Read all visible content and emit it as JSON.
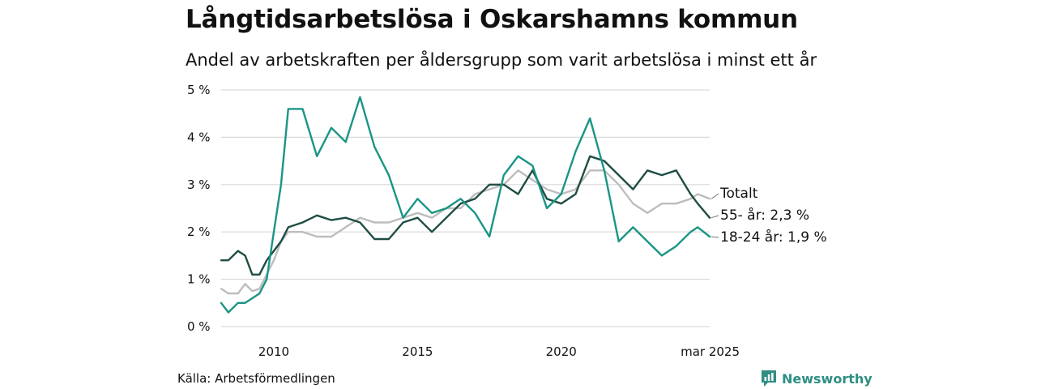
{
  "header": {
    "title": "Långtidsarbetslösa i Oskarshamns kommun",
    "subtitle": "Andel av arbetskraften per åldersgrupp som varit arbetslösa i minst ett år"
  },
  "footer": {
    "source": "Källa: Arbetsförmedlingen",
    "brand": "Newsworthy"
  },
  "colors": {
    "totalt": "#bdbdbd",
    "age55": "#1f4d45",
    "age18_24": "#1a9585",
    "grid": "#d9d9d9",
    "brand": "#2f8f83"
  },
  "chart_data": {
    "type": "line",
    "title": "Långtidsarbetslösa i Oskarshamns kommun",
    "subtitle": "Andel av arbetskraften per åldersgrupp som varit arbetslösa i minst ett år",
    "xlabel": "",
    "ylabel": "",
    "ylim": [
      0,
      5
    ],
    "xlim": [
      "2008-03",
      "2025-03"
    ],
    "grid": "horizontal",
    "y_ticks": [
      "0 %",
      "1 %",
      "2 %",
      "3 %",
      "4 %",
      "5 %"
    ],
    "x_ticks": [
      {
        "date": "2010-01",
        "label": "2010"
      },
      {
        "date": "2015-01",
        "label": "2015"
      },
      {
        "date": "2020-01",
        "label": "2020"
      },
      {
        "date": "2025-03",
        "label": "mar 2025"
      }
    ],
    "series": [
      {
        "name": "Totalt",
        "label": "Totalt",
        "color": "#bdbdbd",
        "points": [
          [
            "2008-03",
            0.8
          ],
          [
            "2008-06",
            0.7
          ],
          [
            "2008-10",
            0.7
          ],
          [
            "2009-01",
            0.9
          ],
          [
            "2009-04",
            0.75
          ],
          [
            "2009-07",
            0.8
          ],
          [
            "2009-10",
            1.1
          ],
          [
            "2010-01",
            1.4
          ],
          [
            "2010-04",
            1.8
          ],
          [
            "2010-07",
            2.0
          ],
          [
            "2011-01",
            2.0
          ],
          [
            "2011-07",
            1.9
          ],
          [
            "2012-01",
            1.9
          ],
          [
            "2012-07",
            2.1
          ],
          [
            "2013-01",
            2.3
          ],
          [
            "2013-07",
            2.2
          ],
          [
            "2014-01",
            2.2
          ],
          [
            "2014-07",
            2.3
          ],
          [
            "2015-01",
            2.4
          ],
          [
            "2015-07",
            2.3
          ],
          [
            "2016-01",
            2.5
          ],
          [
            "2016-07",
            2.5
          ],
          [
            "2017-01",
            2.8
          ],
          [
            "2017-07",
            2.9
          ],
          [
            "2018-01",
            3.0
          ],
          [
            "2018-07",
            3.3
          ],
          [
            "2019-01",
            3.1
          ],
          [
            "2019-07",
            2.9
          ],
          [
            "2020-01",
            2.8
          ],
          [
            "2020-07",
            2.9
          ],
          [
            "2021-01",
            3.3
          ],
          [
            "2021-07",
            3.3
          ],
          [
            "2022-01",
            3.0
          ],
          [
            "2022-07",
            2.6
          ],
          [
            "2023-01",
            2.4
          ],
          [
            "2023-07",
            2.6
          ],
          [
            "2024-01",
            2.6
          ],
          [
            "2024-07",
            2.7
          ],
          [
            "2024-10",
            2.8
          ],
          [
            "2025-03",
            2.7
          ]
        ]
      },
      {
        "name": "55- år",
        "label": "55- år: 2,3 %",
        "color": "#1f4d45",
        "points": [
          [
            "2008-03",
            1.4
          ],
          [
            "2008-06",
            1.4
          ],
          [
            "2008-10",
            1.6
          ],
          [
            "2009-01",
            1.5
          ],
          [
            "2009-04",
            1.1
          ],
          [
            "2009-07",
            1.1
          ],
          [
            "2009-10",
            1.4
          ],
          [
            "2010-01",
            1.6
          ],
          [
            "2010-04",
            1.8
          ],
          [
            "2010-07",
            2.1
          ],
          [
            "2011-01",
            2.2
          ],
          [
            "2011-07",
            2.35
          ],
          [
            "2012-01",
            2.25
          ],
          [
            "2012-07",
            2.3
          ],
          [
            "2013-01",
            2.2
          ],
          [
            "2013-07",
            1.85
          ],
          [
            "2014-01",
            1.85
          ],
          [
            "2014-07",
            2.2
          ],
          [
            "2015-01",
            2.3
          ],
          [
            "2015-07",
            2.0
          ],
          [
            "2016-01",
            2.3
          ],
          [
            "2016-07",
            2.6
          ],
          [
            "2017-01",
            2.7
          ],
          [
            "2017-07",
            3.0
          ],
          [
            "2018-01",
            3.0
          ],
          [
            "2018-07",
            2.8
          ],
          [
            "2019-01",
            3.3
          ],
          [
            "2019-07",
            2.7
          ],
          [
            "2020-01",
            2.6
          ],
          [
            "2020-07",
            2.8
          ],
          [
            "2021-01",
            3.6
          ],
          [
            "2021-07",
            3.5
          ],
          [
            "2022-01",
            3.2
          ],
          [
            "2022-07",
            2.9
          ],
          [
            "2023-01",
            3.3
          ],
          [
            "2023-07",
            3.2
          ],
          [
            "2024-01",
            3.3
          ],
          [
            "2024-07",
            2.8
          ],
          [
            "2024-10",
            2.6
          ],
          [
            "2025-03",
            2.3
          ]
        ]
      },
      {
        "name": "18-24 år",
        "label": "18-24 år: 1,9 %",
        "color": "#1a9585",
        "points": [
          [
            "2008-03",
            0.5
          ],
          [
            "2008-06",
            0.3
          ],
          [
            "2008-10",
            0.5
          ],
          [
            "2009-01",
            0.5
          ],
          [
            "2009-04",
            0.6
          ],
          [
            "2009-07",
            0.7
          ],
          [
            "2009-10",
            1.0
          ],
          [
            "2010-01",
            2.0
          ],
          [
            "2010-04",
            3.0
          ],
          [
            "2010-07",
            4.6
          ],
          [
            "2011-01",
            4.6
          ],
          [
            "2011-07",
            3.6
          ],
          [
            "2012-01",
            4.2
          ],
          [
            "2012-07",
            3.9
          ],
          [
            "2013-01",
            4.85
          ],
          [
            "2013-07",
            3.8
          ],
          [
            "2014-01",
            3.2
          ],
          [
            "2014-07",
            2.3
          ],
          [
            "2015-01",
            2.7
          ],
          [
            "2015-07",
            2.4
          ],
          [
            "2016-01",
            2.5
          ],
          [
            "2016-07",
            2.7
          ],
          [
            "2017-01",
            2.4
          ],
          [
            "2017-07",
            1.9
          ],
          [
            "2018-01",
            3.2
          ],
          [
            "2018-07",
            3.6
          ],
          [
            "2019-01",
            3.4
          ],
          [
            "2019-07",
            2.5
          ],
          [
            "2020-01",
            2.8
          ],
          [
            "2020-07",
            3.7
          ],
          [
            "2021-01",
            4.4
          ],
          [
            "2021-07",
            3.3
          ],
          [
            "2022-01",
            1.8
          ],
          [
            "2022-07",
            2.1
          ],
          [
            "2023-01",
            1.8
          ],
          [
            "2023-07",
            1.5
          ],
          [
            "2024-01",
            1.7
          ],
          [
            "2024-07",
            2.0
          ],
          [
            "2024-10",
            2.1
          ],
          [
            "2025-03",
            1.9
          ]
        ]
      }
    ]
  }
}
